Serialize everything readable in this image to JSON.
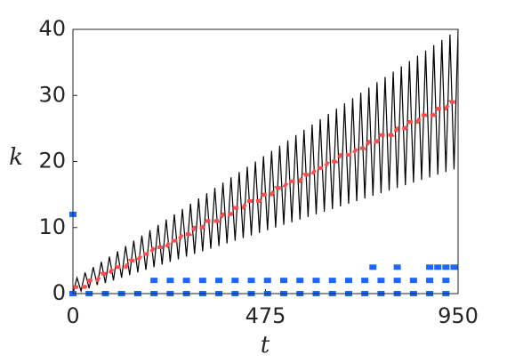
{
  "chart_data": {
    "type": "line",
    "xlabel": "t",
    "ylabel": "k",
    "xlim": [
      0,
      950
    ],
    "xticks": [
      0,
      475,
      950
    ],
    "ylim": [
      0,
      40
    ],
    "yticks": [
      0,
      10,
      20,
      30,
      40
    ],
    "x": [
      0,
      10,
      20,
      30,
      40,
      50,
      60,
      70,
      80,
      90,
      100,
      110,
      120,
      130,
      140,
      150,
      160,
      170,
      180,
      190,
      200,
      210,
      220,
      230,
      240,
      250,
      260,
      270,
      280,
      290,
      300,
      310,
      320,
      330,
      340,
      350,
      360,
      370,
      380,
      390,
      400,
      410,
      420,
      430,
      440,
      450,
      460,
      470,
      480,
      490,
      500,
      510,
      520,
      530,
      540,
      550,
      560,
      570,
      580,
      590,
      600,
      610,
      620,
      630,
      640,
      650,
      660,
      670,
      680,
      690,
      700,
      710,
      720,
      730,
      740,
      750,
      760,
      770,
      780,
      790,
      800,
      810,
      820,
      830,
      840,
      850,
      860,
      870,
      880,
      890,
      900,
      910,
      920,
      930,
      940,
      950
    ],
    "series": [
      {
        "color": "#000000",
        "mode": "line",
        "width": 1.2,
        "values": [
          0,
          2.4,
          0.4,
          3.2,
          0.8,
          4.0,
          1.3,
          4.8,
          1.6,
          5.6,
          2.0,
          6.4,
          2.4,
          7.2,
          2.8,
          8.0,
          3.2,
          8.8,
          3.6,
          9.6,
          4.0,
          10.4,
          4.4,
          11.2,
          4.8,
          12.0,
          5.2,
          12.8,
          5.6,
          13.6,
          6.0,
          14.4,
          6.4,
          15.2,
          6.8,
          16.0,
          7.2,
          16.8,
          7.6,
          17.6,
          8.0,
          18.4,
          8.4,
          19.2,
          8.8,
          20.0,
          9.2,
          20.8,
          9.6,
          21.6,
          10.0,
          22.4,
          10.4,
          23.2,
          10.8,
          24.0,
          11.2,
          24.8,
          11.6,
          25.6,
          12.0,
          26.4,
          12.4,
          27.2,
          12.8,
          28.0,
          13.2,
          28.8,
          13.6,
          29.6,
          14.0,
          30.4,
          14.4,
          31.2,
          14.8,
          32.0,
          15.2,
          32.8,
          15.6,
          33.6,
          16.0,
          34.4,
          16.4,
          35.2,
          16.8,
          36.0,
          17.2,
          36.8,
          17.6,
          37.6,
          18.0,
          38.4,
          18.4,
          39.2,
          18.8,
          40.0
        ]
      },
      {
        "color": "#ff4d4d",
        "mode": "line",
        "width": 4,
        "values": [
          1,
          1,
          1,
          1,
          2,
          2,
          2,
          3,
          3,
          3,
          4,
          4,
          4,
          4,
          5,
          5,
          5,
          6,
          6,
          6,
          7,
          7,
          7,
          7,
          8,
          8,
          8,
          9,
          9,
          9,
          10,
          10,
          10,
          11,
          11,
          11,
          11,
          12,
          12,
          12,
          13,
          13,
          13,
          14,
          14,
          14,
          14,
          15,
          15,
          15,
          16,
          16,
          16,
          17,
          17,
          17,
          17,
          18,
          18,
          18,
          19,
          19,
          19,
          20,
          20,
          20,
          21,
          21,
          21,
          21,
          22,
          22,
          22,
          23,
          23,
          23,
          24,
          24,
          24,
          24,
          25,
          25,
          25,
          26,
          26,
          26,
          27,
          27,
          27,
          27,
          28,
          28,
          28,
          29,
          29,
          29
        ]
      },
      {
        "color": "#1a66ff",
        "mode": "markers",
        "x": [
          0,
          40,
          80,
          120,
          160,
          200,
          240,
          280,
          320,
          360,
          400,
          440,
          480,
          520,
          560,
          600,
          640,
          680,
          720,
          760,
          800,
          840,
          880,
          920,
          200,
          240,
          280,
          320,
          360,
          400,
          440,
          480,
          520,
          560,
          600,
          640,
          680,
          720,
          760,
          800,
          840,
          880,
          920,
          740,
          800,
          880,
          900,
          920,
          940,
          0
        ],
        "values": [
          0,
          0,
          0,
          0,
          0,
          0,
          0,
          0,
          0,
          0,
          0,
          0,
          0,
          0,
          0,
          0,
          0,
          0,
          0,
          0,
          0,
          0,
          0,
          0,
          2,
          2,
          2,
          2,
          2,
          2,
          2,
          2,
          2,
          2,
          2,
          2,
          2,
          2,
          2,
          2,
          2,
          2,
          2,
          4,
          4,
          4,
          4,
          4,
          4,
          12
        ]
      }
    ]
  }
}
